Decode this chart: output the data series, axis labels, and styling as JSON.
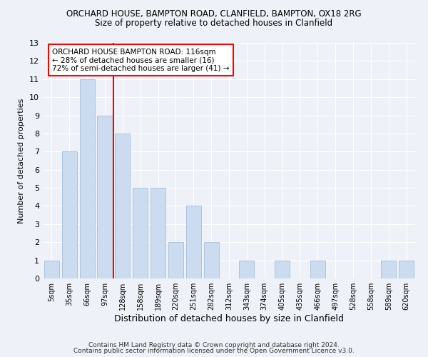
{
  "title": "ORCHARD HOUSE, BAMPTON ROAD, CLANFIELD, BAMPTON, OX18 2RG",
  "subtitle": "Size of property relative to detached houses in Clanfield",
  "xlabel": "Distribution of detached houses by size in Clanfield",
  "ylabel": "Number of detached properties",
  "categories": [
    "5sqm",
    "35sqm",
    "66sqm",
    "97sqm",
    "128sqm",
    "158sqm",
    "189sqm",
    "220sqm",
    "251sqm",
    "282sqm",
    "312sqm",
    "343sqm",
    "374sqm",
    "405sqm",
    "435sqm",
    "466sqm",
    "497sqm",
    "528sqm",
    "558sqm",
    "589sqm",
    "620sqm"
  ],
  "values": [
    1,
    7,
    11,
    9,
    8,
    5,
    5,
    2,
    4,
    2,
    0,
    1,
    0,
    1,
    0,
    1,
    0,
    0,
    0,
    1,
    1
  ],
  "bar_color": "#ccdcf0",
  "bar_edge_color": "#9ab5d5",
  "red_line_x": 3.5,
  "annotation_title": "ORCHARD HOUSE BAMPTON ROAD: 116sqm",
  "annotation_line1": "← 28% of detached houses are smaller (16)",
  "annotation_line2": "72% of semi-detached houses are larger (41) →",
  "ylim": [
    0,
    13
  ],
  "yticks": [
    0,
    1,
    2,
    3,
    4,
    5,
    6,
    7,
    8,
    9,
    10,
    11,
    12,
    13
  ],
  "footer1": "Contains HM Land Registry data © Crown copyright and database right 2024.",
  "footer2": "Contains public sector information licensed under the Open Government Licence v3.0.",
  "bg_color": "#eef2f8",
  "grid_color": "#ffffff"
}
